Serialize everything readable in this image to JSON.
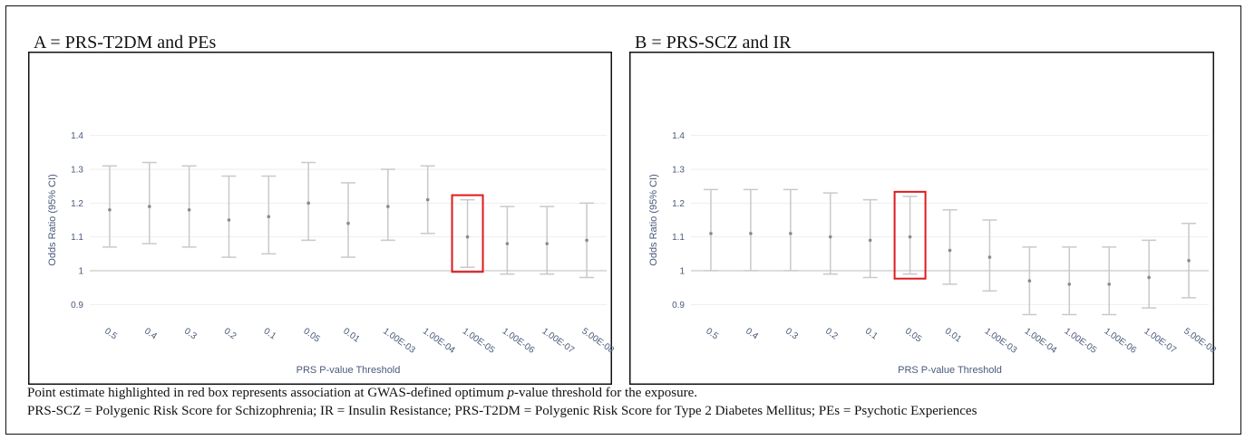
{
  "panels": {
    "a": {
      "title": "A = PRS-T2DM and PEs"
    },
    "b": {
      "title": "B = PRS-SCZ and IR"
    }
  },
  "caption": {
    "line1_before": "Point estimate highlighted in red box represents association at GWAS-defined optimum ",
    "line1_italic": "p",
    "line1_after": "-value threshold for the exposure.",
    "line2": "PRS-SCZ = Polygenic Risk Score for Schizophrenia; IR = Insulin Resistance; PRS-T2DM = Polygenic Risk Score for Type 2 Diabetes Mellitus; PEs = Psychotic Experiences"
  },
  "colors": {
    "error_bar": "#c9c9c9",
    "point": "#8a8a8a",
    "highlight": "#e0191b",
    "axis_text": "#4a5a7a",
    "grid": "#eeeeee",
    "reference_line": "#bbbbbb"
  },
  "chart_data": [
    {
      "type": "scatter",
      "title": "A = PRS-T2DM and PEs",
      "xlabel": "PRS P-value Threshold",
      "ylabel": "Odds Ratio (95% CI)",
      "ylim": [
        0.85,
        1.45
      ],
      "yticks": [
        0.9,
        1,
        1.1,
        1.2,
        1.3,
        1.4
      ],
      "ytick_labels": [
        "0.9",
        "1",
        "1.1",
        "1.2",
        "1.3",
        "1.4"
      ],
      "reference_line": 1,
      "categories": [
        "0.5",
        "0.4",
        "0.3",
        "0.2",
        "0.1",
        "0.05",
        "0.01",
        "1.00E-03",
        "1.00E-04",
        "1.00E-05",
        "1.00E-06",
        "1.00E-07",
        "5.00E-08"
      ],
      "estimate": [
        1.18,
        1.19,
        1.18,
        1.15,
        1.16,
        1.2,
        1.14,
        1.19,
        1.21,
        1.1,
        1.08,
        1.08,
        1.09
      ],
      "lower": [
        1.07,
        1.08,
        1.07,
        1.04,
        1.05,
        1.09,
        1.04,
        1.09,
        1.11,
        1.01,
        0.99,
        0.99,
        0.98
      ],
      "upper": [
        1.31,
        1.32,
        1.31,
        1.28,
        1.28,
        1.32,
        1.26,
        1.3,
        1.31,
        1.21,
        1.19,
        1.19,
        1.2
      ],
      "highlight_category": "1.00E-05"
    },
    {
      "type": "scatter",
      "title": "B = PRS-SCZ and IR",
      "xlabel": "PRS P-value Threshold",
      "ylabel": "Odds Ratio (95% CI)",
      "ylim": [
        0.85,
        1.45
      ],
      "yticks": [
        0.9,
        1,
        1.1,
        1.2,
        1.3,
        1.4
      ],
      "ytick_labels": [
        "0.9",
        "1",
        "1.1",
        "1.2",
        "1.3",
        "1.4"
      ],
      "reference_line": 1,
      "categories": [
        "0.5",
        "0.4",
        "0.3",
        "0.2",
        "0.1",
        "0.05",
        "0.01",
        "1.00E-03",
        "1.00E-04",
        "1.00E-05",
        "1.00E-06",
        "1.00E-07",
        "5.00E-08"
      ],
      "estimate": [
        1.11,
        1.11,
        1.11,
        1.1,
        1.09,
        1.1,
        1.06,
        1.04,
        0.97,
        0.96,
        0.96,
        0.98,
        1.03
      ],
      "lower": [
        1.0,
        1.0,
        1.0,
        0.99,
        0.98,
        0.99,
        0.96,
        0.94,
        0.87,
        0.87,
        0.87,
        0.89,
        0.92
      ],
      "upper": [
        1.24,
        1.24,
        1.24,
        1.23,
        1.21,
        1.22,
        1.18,
        1.15,
        1.07,
        1.07,
        1.07,
        1.09,
        1.14
      ],
      "highlight_category": "0.05"
    }
  ]
}
